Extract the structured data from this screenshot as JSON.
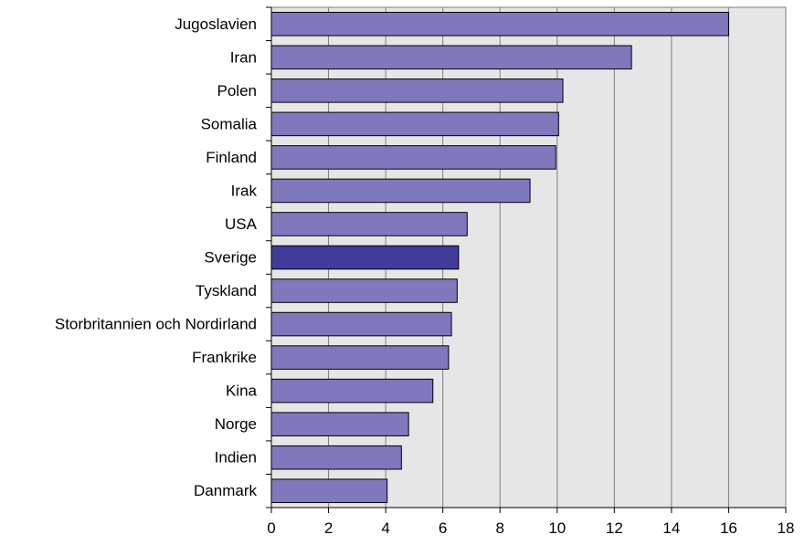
{
  "chart_data": {
    "type": "bar",
    "orientation": "horizontal",
    "title": "",
    "xlabel": "",
    "ylabel": "",
    "categories": [
      "Jugoslavien",
      "Iran",
      "Polen",
      "Somalia",
      "Finland",
      "Irak",
      "USA",
      "Sverige",
      "Tyskland",
      "Storbritannien och Nordirland",
      "Frankrike",
      "Kina",
      "Norge",
      "Indien",
      "Danmark"
    ],
    "values": [
      16.0,
      12.6,
      10.2,
      10.05,
      9.95,
      9.05,
      6.85,
      6.55,
      6.5,
      6.3,
      6.2,
      5.65,
      4.8,
      4.55,
      4.05
    ],
    "highlight_category": "Sverige",
    "xlim": [
      0,
      18
    ],
    "xticks": [
      0,
      2,
      4,
      6,
      8,
      10,
      12,
      14,
      16,
      18
    ],
    "grid": "vertical",
    "legend": "none",
    "colors": {
      "bar": "#7f78bd",
      "highlight": "#433b99",
      "plot_background": "#e6e6e6",
      "grid": "#7f7f7f",
      "axis": "#000000"
    }
  }
}
